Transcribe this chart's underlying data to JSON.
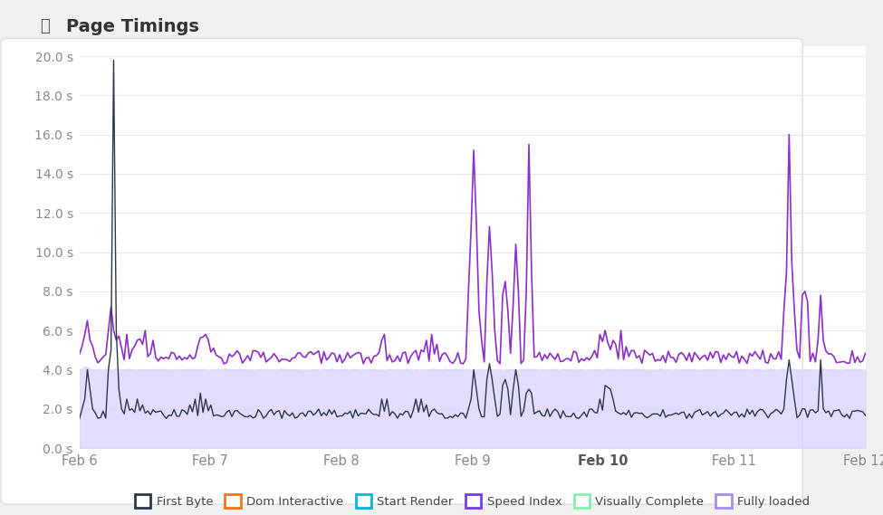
{
  "title": "Page Timings",
  "title_icon": "⏱",
  "ylim": [
    0,
    20.5
  ],
  "ytick_vals": [
    0.0,
    2.0,
    4.0,
    6.0,
    8.0,
    10.0,
    12.0,
    14.0,
    16.0,
    18.0,
    20.0
  ],
  "ytick_labels": [
    "0.0 s",
    "2.0 s",
    "4.0 s",
    "6.0 s",
    "8.0 s",
    "10.0 s",
    "12.0 s",
    "14.0 s",
    "16.0 s",
    "18.0 s",
    "20.0 s"
  ],
  "xtick_labels": [
    "Feb 6",
    "Feb 7",
    "Feb 8",
    "Feb 9",
    "Feb 10",
    "Feb 11",
    "Feb 12"
  ],
  "fig_bg": "#f0f0f0",
  "card_bg": "#ffffff",
  "ax_bg": "#ffffff",
  "grid_color": "#e8e8e8",
  "first_byte_color": "#2d3748",
  "speed_index_color": "#8b2fc9",
  "fully_loaded_fill": "#ddd6fe",
  "fully_loaded_line": "#c4b5fd",
  "legend": [
    {
      "label": "First Byte",
      "edge": "#2d3748",
      "fill": "#ffffff",
      "check": true
    },
    {
      "label": "Dom Interactive",
      "edge": "#f97316",
      "fill": "#ffffff",
      "check": false
    },
    {
      "label": "Start Render",
      "edge": "#06b6d4",
      "fill": "#ffffff",
      "check": false
    },
    {
      "label": "Speed Index",
      "edge": "#7c3aed",
      "fill": "#ffffff",
      "check": true
    },
    {
      "label": "Visually Complete",
      "edge": "#86efac",
      "fill": "#ffffff",
      "check": false
    },
    {
      "label": "Fully loaded",
      "edge": "#a78bfa",
      "fill": "#ffffff",
      "check": false
    }
  ]
}
